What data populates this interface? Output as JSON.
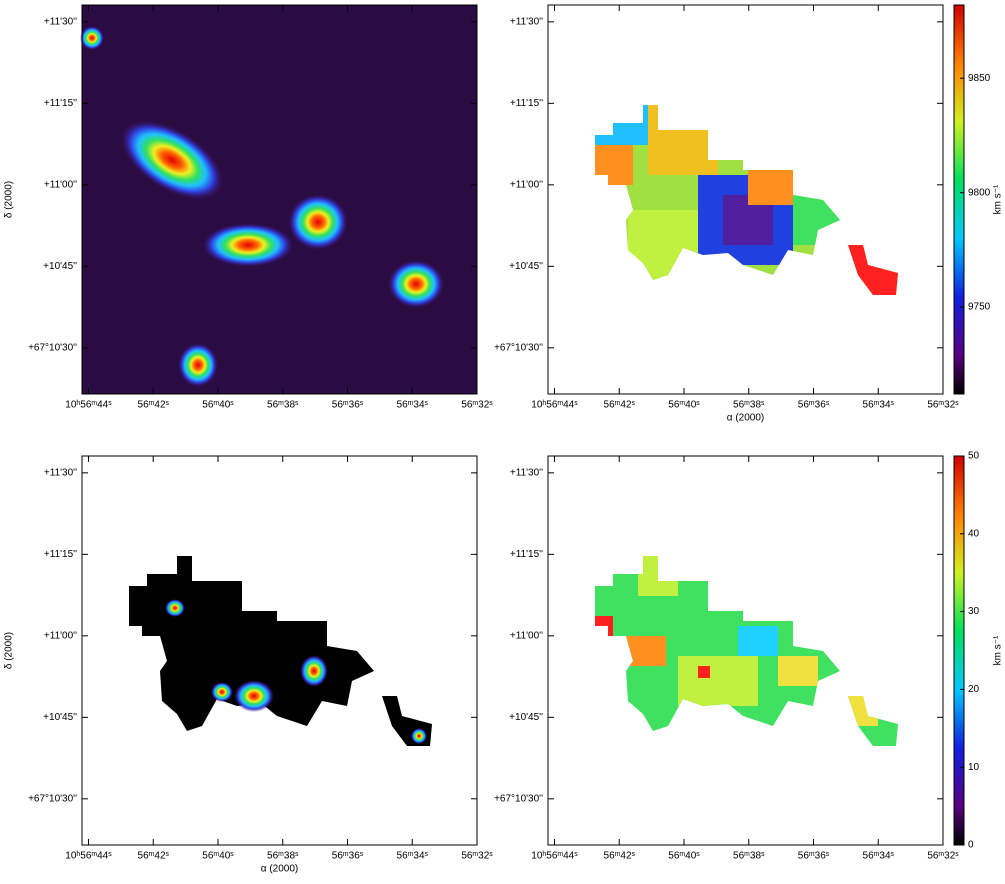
{
  "chart_data": [
    {
      "type": "image",
      "xlim": [
        44.2,
        32
      ],
      "xticks": [
        {
          "value": 44,
          "label": "10ʰ56ᵐ44ˢ"
        },
        {
          "value": 42,
          "label": "56ᵐ42ˢ"
        },
        {
          "value": 40,
          "label": "56ᵐ40ˢ"
        },
        {
          "value": 38,
          "label": "56ᵐ38ˢ"
        },
        {
          "value": 36,
          "label": "56ᵐ36ˢ"
        },
        {
          "value": 34,
          "label": "56ᵐ34ˢ"
        },
        {
          "value": 32,
          "label": "56ᵐ32ˢ"
        }
      ],
      "ylim": [
        21.5,
        93.1
      ],
      "yticks": [
        {
          "value": 90,
          "label": "+11'30''"
        },
        {
          "value": 75,
          "label": "+11'15''"
        },
        {
          "value": 60,
          "label": "+11'00''"
        },
        {
          "value": 45,
          "label": "+10'45''"
        },
        {
          "value": 30,
          "label": "+67°10'30''"
        }
      ],
      "y_label": "δ (2000)"
    },
    {
      "type": "image",
      "xlim": [
        44.2,
        32
      ],
      "xticks": [
        {
          "value": 44,
          "label": "10ʰ56ᵐ44ˢ"
        },
        {
          "value": 42,
          "label": "56ᵐ42ˢ"
        },
        {
          "value": 40,
          "label": "56ᵐ40ˢ"
        },
        {
          "value": 38,
          "label": "56ᵐ38ˢ"
        },
        {
          "value": 36,
          "label": "56ᵐ36ˢ"
        },
        {
          "value": 34,
          "label": "56ᵐ34ˢ"
        },
        {
          "value": 32,
          "label": "56ᵐ32ˢ"
        }
      ],
      "ylim": [
        21.5,
        93.1
      ],
      "yticks": [
        {
          "value": 90,
          "label": "+11'30''"
        },
        {
          "value": 75,
          "label": "+11'15''"
        },
        {
          "value": 60,
          "label": "+11'00''"
        },
        {
          "value": 45,
          "label": "+10'45''"
        },
        {
          "value": 30,
          "label": "+67°10'30''"
        }
      ],
      "x_label": "α (2000)",
      "colorbar": {
        "clim": [
          9712,
          9882
        ],
        "ticks": [
          9750,
          9800,
          9850
        ],
        "label": "km s⁻¹"
      }
    },
    {
      "type": "image",
      "xlim": [
        44.2,
        32
      ],
      "xticks": [
        {
          "value": 44,
          "label": "10ʰ56ᵐ44ˢ"
        },
        {
          "value": 42,
          "label": "56ᵐ42ˢ"
        },
        {
          "value": 40,
          "label": "56ᵐ40ˢ"
        },
        {
          "value": 38,
          "label": "56ᵐ38ˢ"
        },
        {
          "value": 36,
          "label": "56ᵐ36ˢ"
        },
        {
          "value": 34,
          "label": "56ᵐ34ˢ"
        },
        {
          "value": 32,
          "label": "56ᵐ32ˢ"
        }
      ],
      "ylim": [
        21.5,
        93.1
      ],
      "yticks": [
        {
          "value": 90,
          "label": "+11'30''"
        },
        {
          "value": 75,
          "label": "+11'15''"
        },
        {
          "value": 60,
          "label": "+11'00''"
        },
        {
          "value": 45,
          "label": "+10'45''"
        },
        {
          "value": 30,
          "label": "+67°10'30''"
        }
      ],
      "x_label": "α (2000)",
      "y_label": "δ (2000)"
    },
    {
      "type": "image",
      "xlim": [
        44.2,
        32
      ],
      "xticks": [
        {
          "value": 44,
          "label": "10ʰ56ᵐ44ˢ"
        },
        {
          "value": 42,
          "label": "56ᵐ42ˢ"
        },
        {
          "value": 40,
          "label": "56ᵐ40ˢ"
        },
        {
          "value": 38,
          "label": "56ᵐ38ˢ"
        },
        {
          "value": 36,
          "label": "56ᵐ36ˢ"
        },
        {
          "value": 34,
          "label": "56ᵐ34ˢ"
        },
        {
          "value": 32,
          "label": "56ᵐ32ˢ"
        }
      ],
      "ylim": [
        21.5,
        93.1
      ],
      "yticks": [
        {
          "value": 90,
          "label": "+11'30''"
        },
        {
          "value": 75,
          "label": "+11'15''"
        },
        {
          "value": 60,
          "label": "+11'00''"
        },
        {
          "value": 45,
          "label": "+10'45''"
        },
        {
          "value": 30,
          "label": "+67°10'30''"
        }
      ],
      "colorbar": {
        "clim": [
          0,
          50
        ],
        "ticks": [
          0,
          10,
          20,
          30,
          40,
          50
        ],
        "label": "km s⁻¹"
      }
    }
  ]
}
